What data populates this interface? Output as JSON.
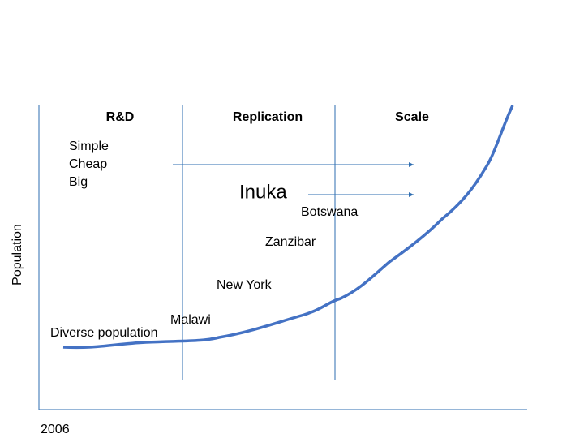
{
  "columns": [
    "R&D",
    "Replication",
    "Scale"
  ],
  "features": [
    "Simple",
    "Cheap",
    "Big"
  ],
  "product": "Inuka",
  "places": [
    "Botswana",
    "Zanzibar",
    "New York",
    "Malawi",
    "Diverse population"
  ],
  "y_axis_label": "Population",
  "x_axis_label": "2006"
}
